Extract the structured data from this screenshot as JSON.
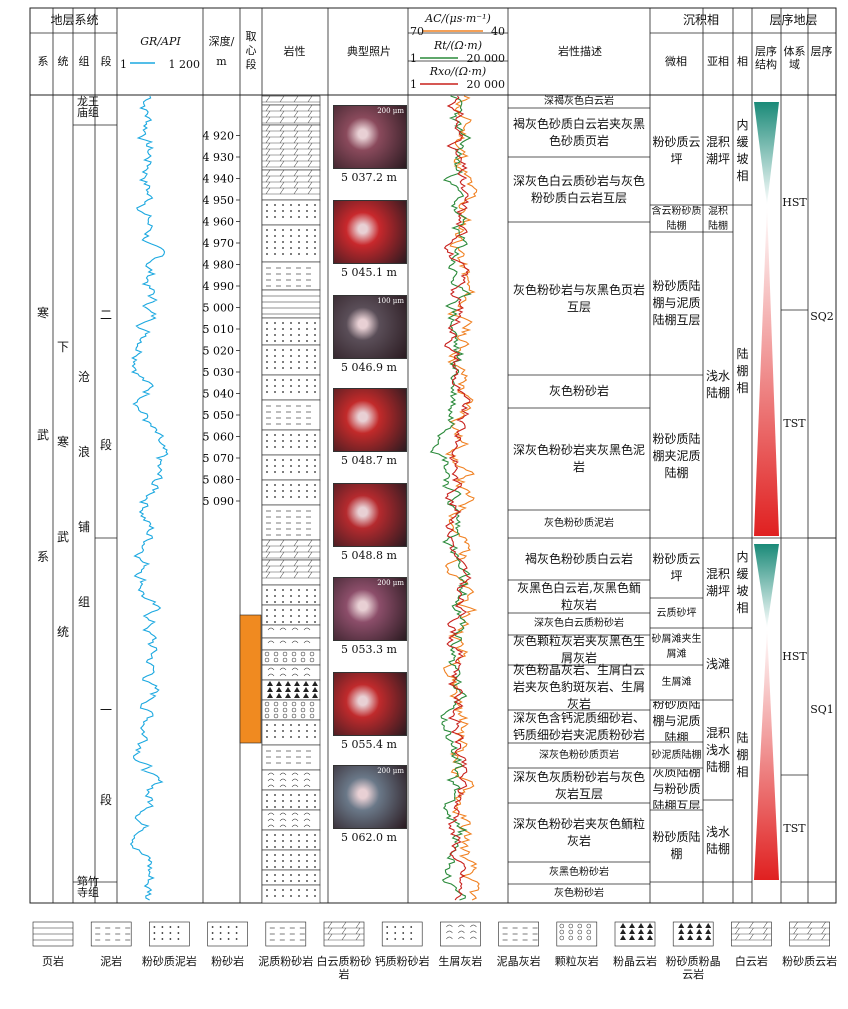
{
  "header": {
    "stratigraphy": "地层系统",
    "system": "系",
    "series": "统",
    "group": "组",
    "member": "段",
    "gr_title": "GR/API",
    "gr_min": "1",
    "gr_max": "1 200",
    "depth_title": "深度/",
    "depth_unit": "m",
    "coring": "取心段",
    "lithology": "岩性",
    "photos": "典型照片",
    "ac_title": "AC/(μs·m⁻¹)",
    "ac_left": "70",
    "ac_right": "40",
    "rt_title": "Rt/(Ω·m)",
    "rt_left": "1",
    "rt_right": "20 000",
    "rxo_title": "Rxo/(Ω·m)",
    "rxo_left": "1",
    "rxo_right": "20 000",
    "description": "岩性描述",
    "sedfacies": "沉积相",
    "microfacies": "微相",
    "subfacies": "亚相",
    "facies": "相",
    "sequence": "层序地层",
    "seq_structure": "层序结构",
    "systems_tract": "体系域",
    "seq": "层序"
  },
  "strat": {
    "system": "寒武系",
    "series": "下寒武统",
    "group": "沧浪铺组",
    "member_upper": "二段",
    "member_lower": "一段",
    "top_unit": "龙王庙组",
    "bottom_unit": "筇竹寺组"
  },
  "depths": [
    "4 920",
    "4 930",
    "4 940",
    "4 950",
    "4 960",
    "4 970",
    "4 980",
    "4 990",
    "5 000",
    "5 010",
    "5 020",
    "5 030",
    "5 040",
    "5 050",
    "5 060",
    "5 070",
    "5 080",
    "5 090"
  ],
  "photos": [
    {
      "caption": "5 037.2 m",
      "scale": "200 μm",
      "color": "#8a4a5c"
    },
    {
      "caption": "5 045.1 m",
      "scale": "",
      "color": "#c8282c"
    },
    {
      "caption": "5 046.9 m",
      "scale": "100 μm",
      "color": "#5a4e58"
    },
    {
      "caption": "5 048.7 m",
      "scale": "",
      "color": "#c22a2a"
    },
    {
      "caption": "5 048.8 m",
      "scale": "",
      "color": "#b52a2e"
    },
    {
      "caption": "5 053.3 m",
      "scale": "200 μm",
      "color": "#8c4e6a"
    },
    {
      "caption": "5 055.4 m",
      "scale": "",
      "color": "#c02a2c"
    },
    {
      "caption": "5 062.0 m",
      "scale": "200 μm",
      "color": "#6a7888"
    }
  ],
  "descriptions": [
    "深褐灰色白云岩",
    "褐灰色砂质白云岩夹灰黑色砂质页岩",
    "深灰色白云质砂岩与灰色粉砂质白云岩互层",
    "灰色粉砂岩与灰黑色页岩互层",
    "灰色粉砂岩",
    "深灰色粉砂岩夹灰黑色泥岩",
    "灰色粉砂质泥岩",
    "褐灰色粉砂质白云岩",
    "灰黑色白云岩,灰黑色鲕粒灰岩",
    "深灰色白云质粉砂岩",
    "灰色颗粒灰岩夹灰黑色生屑灰岩",
    "灰色粉晶灰岩、生屑白云岩夹灰色豹斑灰岩、生屑灰岩",
    "深灰色含钙泥质细砂岩、钙质细砂岩夹泥质粉砂岩",
    "深灰色粉砂质页岩",
    "深灰色灰质粉砂岩与灰色灰岩互层",
    "深灰色粉砂岩夹灰色鲕粒灰岩",
    "灰黑色粉砂岩",
    "灰色粉砂岩"
  ],
  "microfacies": [
    "粉砂质云坪",
    "含云粉砂质陆棚",
    "粉砂质陆棚与泥质陆棚互层",
    "粉砂质陆棚夹泥质陆棚",
    "粉砂质云坪",
    "云质砂坪",
    "砂屑滩夹生屑滩",
    "生屑滩",
    "粉砂质陆棚与泥质陆棚",
    "砂泥质陆棚",
    "灰质陆棚与粉砂质陆棚互层",
    "粉砂质陆棚"
  ],
  "subfacies": [
    "混积潮坪",
    "混积陆棚",
    "浅水陆棚",
    "混积潮坪",
    "浅滩",
    "混积浅水陆棚",
    "浅水陆棚"
  ],
  "facies": [
    "内缓坡相",
    "陆棚相",
    "内缓坡相",
    "陆棚相"
  ],
  "tracts": [
    "HST",
    "TST",
    "HST",
    "TST"
  ],
  "sequences": [
    "SQ2",
    "SQ1"
  ],
  "legend": [
    "页岩",
    "泥岩",
    "粉砂质泥岩",
    "粉砂岩",
    "泥质粉砂岩",
    "白云质粉砂岩",
    "钙质粉砂岩",
    "生屑灰岩",
    "泥晶灰岩",
    "颗粒灰岩",
    "粉晶云岩",
    "粉砂质粉晶云岩",
    "白云岩",
    "粉砂质云岩"
  ],
  "curve_colors": {
    "gr": "#1ba8e0",
    "ac": "#f08020",
    "rt": "#2a8a3a",
    "rxo": "#c8201c",
    "coring": "#f08a20",
    "hst_green": "#1a8a78",
    "tst_red": "#e02020"
  }
}
